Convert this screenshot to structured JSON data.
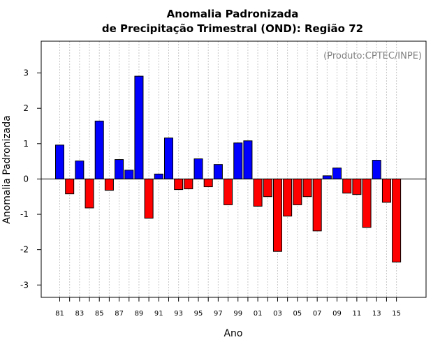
{
  "chart_data": {
    "type": "bar",
    "title": [
      "Anomalia Padronizada",
      "de Precipitação Trimestral (OND): Região 72"
    ],
    "credit": "(Produto:CPTEC/INPE)",
    "xlabel": "Ano",
    "ylabel": "Anomalia Padronizada",
    "ylim": [
      -3.35,
      3.9
    ],
    "yticks": [
      -3,
      -2,
      -1,
      0,
      1,
      2,
      3
    ],
    "xtick_labels": [
      "81",
      "83",
      "85",
      "87",
      "89",
      "91",
      "93",
      "95",
      "97",
      "99",
      "01",
      "03",
      "05",
      "07",
      "09",
      "11",
      "13",
      "15"
    ],
    "categories": [
      "81",
      "82",
      "83",
      "84",
      "85",
      "86",
      "87",
      "88",
      "89",
      "90",
      "91",
      "92",
      "93",
      "94",
      "95",
      "96",
      "97",
      "98",
      "99",
      "00",
      "01",
      "02",
      "03",
      "04",
      "05",
      "06",
      "07",
      "08",
      "09",
      "10",
      "11",
      "12",
      "13",
      "14",
      "15"
    ],
    "values": [
      0.96,
      -0.42,
      0.51,
      -0.82,
      1.64,
      -0.32,
      0.55,
      0.25,
      2.91,
      -1.11,
      0.14,
      1.16,
      -0.3,
      -0.28,
      0.57,
      -0.22,
      0.41,
      -0.73,
      1.02,
      1.08,
      -0.77,
      -0.5,
      -2.05,
      -1.05,
      -0.73,
      -0.5,
      -1.47,
      0.09,
      0.31,
      -0.4,
      -0.44,
      -1.37,
      0.53,
      -0.66,
      -2.35
    ],
    "colors": {
      "positive": "#0000ff",
      "negative": "#ff0000",
      "grid": "#c8c8c8",
      "zero_line": "#000000"
    },
    "grid": true
  }
}
